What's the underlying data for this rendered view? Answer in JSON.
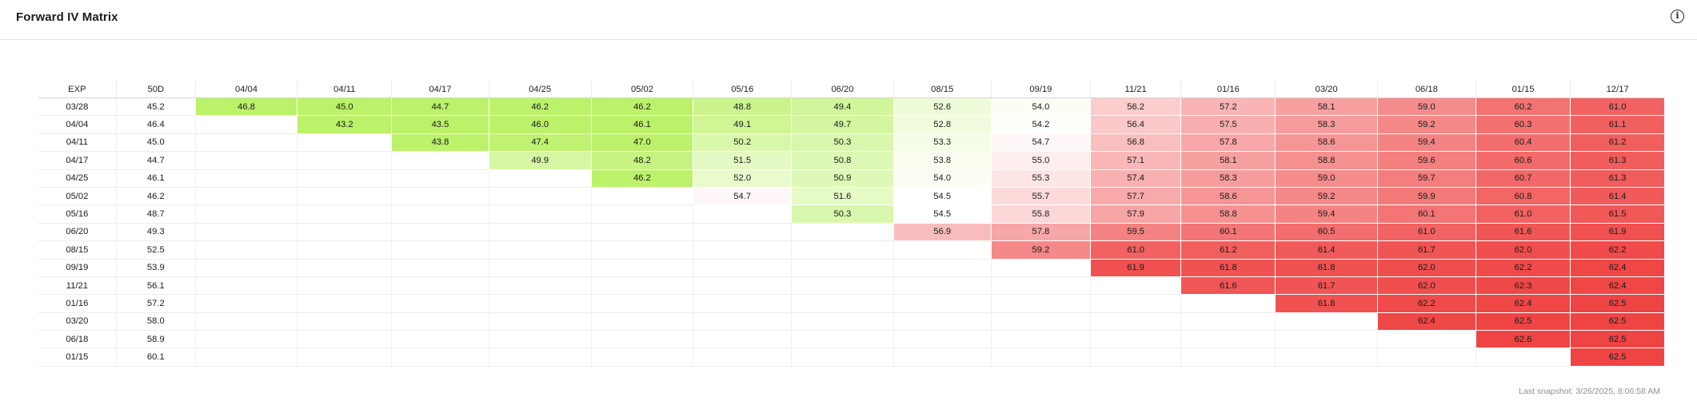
{
  "header": {
    "title": "Forward IV Matrix",
    "info_icon": "info-icon",
    "info_glyph": "i"
  },
  "table": {
    "columns": [
      "EXP",
      "50D",
      "04/04",
      "04/11",
      "04/17",
      "04/25",
      "05/02",
      "05/16",
      "06/20",
      "08/15",
      "09/19",
      "11/21",
      "01/16",
      "03/20",
      "06/18",
      "01/15",
      "12/17"
    ],
    "rows": [
      {
        "exp": "03/28",
        "d50": "45.2",
        "cells": [
          "46.8",
          "45.0",
          "44.7",
          "46.2",
          "46.2",
          "48.8",
          "49.4",
          "52.6",
          "54.0",
          "56.2",
          "57.2",
          "58.1",
          "59.0",
          "60.2",
          "61.0"
        ]
      },
      {
        "exp": "04/04",
        "d50": "46.4",
        "cells": [
          "",
          "43.2",
          "43.5",
          "46.0",
          "46.1",
          "49.1",
          "49.7",
          "52.8",
          "54.2",
          "56.4",
          "57.5",
          "58.3",
          "59.2",
          "60.3",
          "61.1"
        ]
      },
      {
        "exp": "04/11",
        "d50": "45.0",
        "cells": [
          "",
          "",
          "43.8",
          "47.4",
          "47.0",
          "50.2",
          "50.3",
          "53.3",
          "54.7",
          "56.8",
          "57.8",
          "58.6",
          "59.4",
          "60.4",
          "61.2"
        ]
      },
      {
        "exp": "04/17",
        "d50": "44.7",
        "cells": [
          "",
          "",
          "",
          "49.9",
          "48.2",
          "51.5",
          "50.8",
          "53.8",
          "55.0",
          "57.1",
          "58.1",
          "58.8",
          "59.6",
          "60.6",
          "61.3"
        ]
      },
      {
        "exp": "04/25",
        "d50": "46.1",
        "cells": [
          "",
          "",
          "",
          "",
          "46.2",
          "52.0",
          "50.9",
          "54.0",
          "55.3",
          "57.4",
          "58.3",
          "59.0",
          "59.7",
          "60.7",
          "61.3"
        ]
      },
      {
        "exp": "05/02",
        "d50": "46.2",
        "cells": [
          "",
          "",
          "",
          "",
          "",
          "54.7",
          "51.6",
          "54.5",
          "55.7",
          "57.7",
          "58.6",
          "59.2",
          "59.9",
          "60.8",
          "61.4"
        ]
      },
      {
        "exp": "05/16",
        "d50": "48.7",
        "cells": [
          "",
          "",
          "",
          "",
          "",
          "",
          "50.3",
          "54.5",
          "55.8",
          "57.9",
          "58.8",
          "59.4",
          "60.1",
          "61.0",
          "61.5"
        ]
      },
      {
        "exp": "06/20",
        "d50": "49.3",
        "cells": [
          "",
          "",
          "",
          "",
          "",
          "",
          "",
          "56.9",
          "57.8",
          "59.5",
          "60.1",
          "60.5",
          "61.0",
          "61.6",
          "61.9"
        ]
      },
      {
        "exp": "08/15",
        "d50": "52.5",
        "cells": [
          "",
          "",
          "",
          "",
          "",
          "",
          "",
          "",
          "59.2",
          "61.0",
          "61.2",
          "61.4",
          "61.7",
          "62.0",
          "62.2"
        ]
      },
      {
        "exp": "09/19",
        "d50": "53.9",
        "cells": [
          "",
          "",
          "",
          "",
          "",
          "",
          "",
          "",
          "",
          "61.9",
          "61.8",
          "61.8",
          "62.0",
          "62.2",
          "62.4"
        ]
      },
      {
        "exp": "11/21",
        "d50": "56.1",
        "cells": [
          "",
          "",
          "",
          "",
          "",
          "",
          "",
          "",
          "",
          "",
          "61.6",
          "61.7",
          "62.0",
          "62.3",
          "62.4"
        ]
      },
      {
        "exp": "01/16",
        "d50": "57.2",
        "cells": [
          "",
          "",
          "",
          "",
          "",
          "",
          "",
          "",
          "",
          "",
          "",
          "61.8",
          "62.2",
          "62.4",
          "62.5"
        ]
      },
      {
        "exp": "03/20",
        "d50": "58.0",
        "cells": [
          "",
          "",
          "",
          "",
          "",
          "",
          "",
          "",
          "",
          "",
          "",
          "",
          "62.4",
          "62.5",
          "62.5"
        ]
      },
      {
        "exp": "06/18",
        "d50": "58.9",
        "cells": [
          "",
          "",
          "",
          "",
          "",
          "",
          "",
          "",
          "",
          "",
          "",
          "",
          "",
          "62.6",
          "62.5"
        ]
      },
      {
        "exp": "01/15",
        "d50": "60.1",
        "cells": [
          "",
          "",
          "",
          "",
          "",
          "",
          "",
          "",
          "",
          "",
          "",
          "",
          "",
          "",
          "62.5"
        ]
      }
    ]
  },
  "footer": {
    "snapshot": "Last snapshot: 3/26/2025, 8:06:58 AM"
  },
  "colors": {
    "low": "#bcf16a",
    "mid": "#ffffff",
    "high": "#ef4444",
    "text": "#1a1a1a",
    "muted": "#8a8f98"
  }
}
